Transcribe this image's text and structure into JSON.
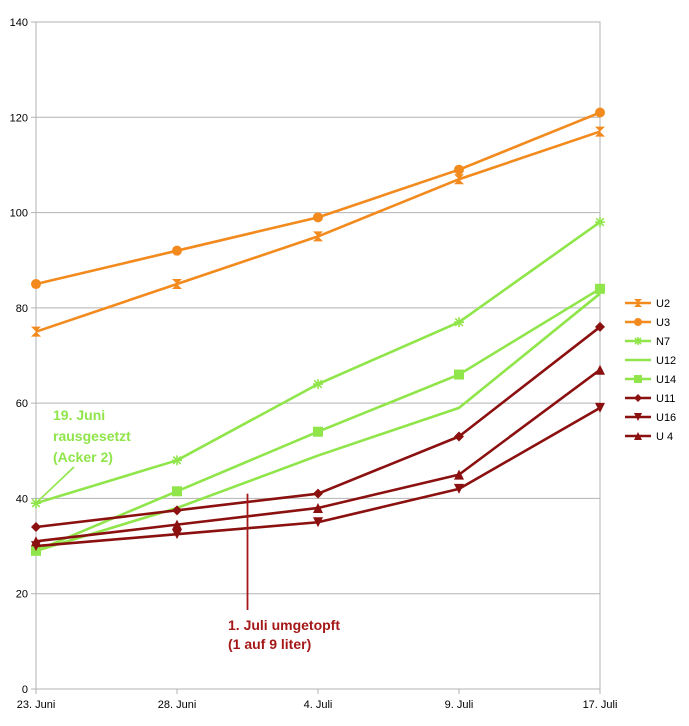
{
  "chart_data": {
    "type": "line",
    "title": "",
    "xlabel": "",
    "ylabel": "",
    "categories": [
      "23. Juni",
      "28. Juni",
      "4. Juli",
      "9. Juli",
      "17. Juli"
    ],
    "ylim": [
      0,
      140
    ],
    "yticks": [
      0,
      20,
      40,
      60,
      80,
      100,
      120,
      140
    ],
    "grid": true,
    "legend_position": "right",
    "series": [
      {
        "name": "U2",
        "color": "#f28a1e",
        "marker": "hourglass",
        "values": [
          75,
          85,
          95,
          107,
          117
        ]
      },
      {
        "name": "U3",
        "color": "#f28a1e",
        "marker": "circle",
        "values": [
          85,
          92,
          99,
          109,
          121
        ]
      },
      {
        "name": "N7",
        "color": "#8fe54a",
        "marker": "star",
        "values": [
          39,
          48,
          64,
          77,
          98
        ]
      },
      {
        "name": "U12",
        "color": "#8fe54a",
        "marker": "none",
        "values": [
          29,
          38,
          49,
          59,
          83
        ]
      },
      {
        "name": "U14",
        "color": "#8fe54a",
        "marker": "square",
        "values": [
          29,
          41.5,
          54,
          66,
          84
        ]
      },
      {
        "name": "U11",
        "color": "#8b1010",
        "marker": "diamond",
        "values": [
          34,
          37.5,
          41,
          53,
          76
        ]
      },
      {
        "name": "U16",
        "color": "#8b1010",
        "marker": "tri-down",
        "values": [
          30,
          32.5,
          35,
          42,
          59
        ]
      },
      {
        "name": "U 4",
        "color": "#8b1010",
        "marker": "tri-up",
        "values": [
          31,
          34.5,
          38,
          45,
          67
        ]
      }
    ],
    "annotations": [
      {
        "id": "out",
        "color": "#8fe54a",
        "lines": [
          "19. Juni",
          "rausgesetzt",
          "(Acker 2)"
        ],
        "points_to": {
          "category_index": 0,
          "value": 39
        }
      },
      {
        "id": "repot",
        "color": "#a51818",
        "lines": [
          "1. Juli umgetopft",
          "(1 auf 9 liter)"
        ],
        "points_to": {
          "category_index": 1.5,
          "value": 41
        }
      }
    ]
  }
}
